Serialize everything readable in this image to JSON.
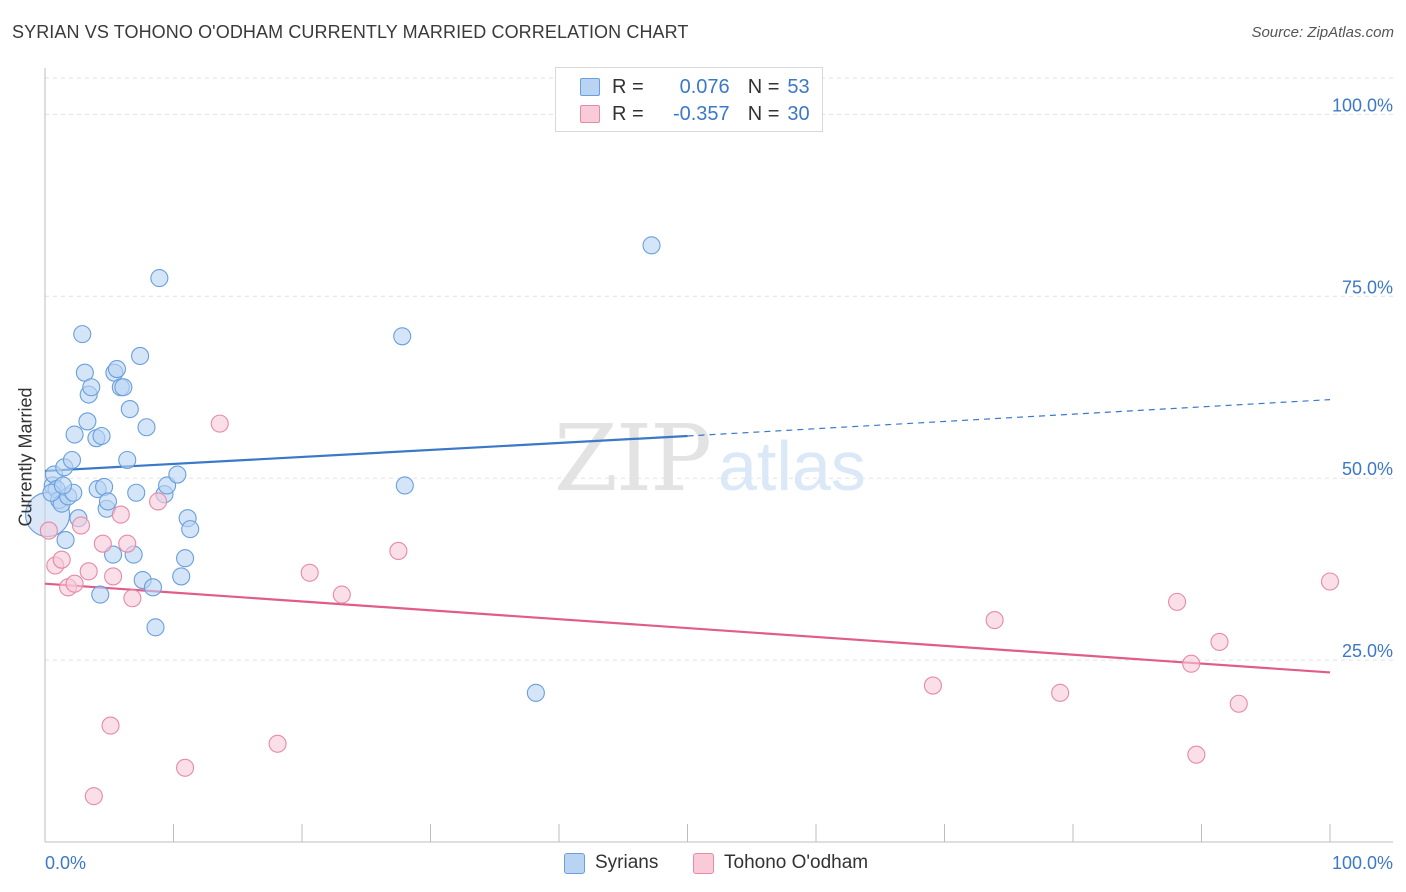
{
  "title": "SYRIAN VS TOHONO O'ODHAM CURRENTLY MARRIED CORRELATION CHART",
  "source": "Source: ZipAtlas.com",
  "watermark": {
    "zip": "ZIP",
    "atlas": "atlas"
  },
  "legend": {
    "rows": [
      {
        "r_label": "R =",
        "r_value": "0.076",
        "n_label": "N =",
        "n_value": "53",
        "fill": "#b9d3f3",
        "stroke": "#6a9fdc"
      },
      {
        "r_label": "R =",
        "r_value": "-0.357",
        "n_label": "N =",
        "n_value": "30",
        "fill": "#f9cad8",
        "stroke": "#e68aa6"
      }
    ]
  },
  "bottom_legend": [
    {
      "label": "Syrians",
      "fill": "#b9d3f3",
      "stroke": "#6a9fdc"
    },
    {
      "label": "Tohono O'odham",
      "fill": "#f9cad8",
      "stroke": "#e68aa6"
    }
  ],
  "chart_data": {
    "type": "scatter",
    "title": "SYRIAN VS TOHONO O'ODHAM CURRENTLY MARRIED CORRELATION CHART",
    "xlabel": "",
    "ylabel": "Currently Married",
    "xlim": [
      0,
      100
    ],
    "ylim": [
      0,
      105
    ],
    "x_tick_labels": [
      "0.0%",
      "100.0%"
    ],
    "y_ticks": [
      25,
      50,
      75,
      100
    ],
    "y_tick_labels": [
      "25.0%",
      "50.0%",
      "75.0%",
      "100.0%"
    ],
    "grid": true,
    "series": [
      {
        "name": "Syrians",
        "color": "#3a78c9",
        "fill": "#b9d3f3",
        "stroke": "#6a9fdc",
        "points": [
          [
            0.2,
            45.0
          ],
          [
            0.6,
            49.0
          ],
          [
            0.7,
            50.5
          ],
          [
            0.9,
            48.5
          ],
          [
            1.1,
            47.0
          ],
          [
            1.3,
            46.5
          ],
          [
            1.5,
            51.5
          ],
          [
            1.8,
            47.5
          ],
          [
            1.6,
            41.5
          ],
          [
            2.1,
            52.5
          ],
          [
            2.3,
            56.0
          ],
          [
            2.6,
            44.5
          ],
          [
            2.9,
            69.8
          ],
          [
            3.1,
            64.5
          ],
          [
            3.4,
            61.5
          ],
          [
            3.6,
            62.5
          ],
          [
            3.3,
            57.8
          ],
          [
            4.0,
            55.5
          ],
          [
            4.1,
            48.5
          ],
          [
            4.4,
            55.8
          ],
          [
            4.6,
            48.8
          ],
          [
            4.8,
            45.8
          ],
          [
            4.9,
            46.8
          ],
          [
            5.3,
            39.5
          ],
          [
            5.4,
            64.5
          ],
          [
            5.6,
            65.0
          ],
          [
            5.9,
            62.5
          ],
          [
            6.1,
            62.5
          ],
          [
            6.4,
            52.5
          ],
          [
            6.6,
            59.5
          ],
          [
            6.9,
            39.5
          ],
          [
            7.1,
            48.0
          ],
          [
            7.4,
            66.8
          ],
          [
            7.6,
            36.0
          ],
          [
            7.9,
            57.0
          ],
          [
            8.4,
            35.0
          ],
          [
            8.6,
            29.5
          ],
          [
            8.9,
            77.5
          ],
          [
            9.3,
            47.8
          ],
          [
            9.5,
            49.0
          ],
          [
            10.3,
            50.5
          ],
          [
            10.6,
            36.5
          ],
          [
            10.9,
            39.0
          ],
          [
            11.1,
            44.5
          ],
          [
            11.3,
            43.0
          ],
          [
            27.8,
            69.5
          ],
          [
            28.0,
            49.0
          ],
          [
            38.2,
            20.5
          ],
          [
            47.2,
            82.0
          ],
          [
            4.3,
            34.0
          ],
          [
            0.5,
            48.0
          ],
          [
            2.2,
            48.0
          ],
          [
            1.4,
            49.0
          ]
        ],
        "trend": {
          "x0": 0,
          "y0": 51.0,
          "x1": 50,
          "y1": 55.8,
          "x_end": 100,
          "y_end": 60.8
        }
      },
      {
        "name": "Tohono O'odham",
        "color": "#e05d8a",
        "fill": "#f9cad8",
        "stroke": "#e68aa6",
        "points": [
          [
            0.3,
            42.8
          ],
          [
            0.8,
            38.0
          ],
          [
            1.3,
            38.8
          ],
          [
            1.8,
            35.0
          ],
          [
            2.3,
            35.5
          ],
          [
            2.8,
            43.5
          ],
          [
            3.4,
            37.2
          ],
          [
            3.8,
            6.3
          ],
          [
            4.5,
            41.0
          ],
          [
            5.1,
            16.0
          ],
          [
            5.3,
            36.5
          ],
          [
            5.9,
            45.0
          ],
          [
            6.4,
            41.0
          ],
          [
            6.8,
            33.5
          ],
          [
            8.8,
            46.8
          ],
          [
            10.9,
            10.2
          ],
          [
            13.6,
            57.5
          ],
          [
            18.1,
            13.5
          ],
          [
            20.6,
            37.0
          ],
          [
            23.1,
            34.0
          ],
          [
            27.5,
            40.0
          ],
          [
            69.1,
            21.5
          ],
          [
            73.9,
            30.5
          ],
          [
            79.0,
            20.5
          ],
          [
            88.1,
            33.0
          ],
          [
            89.2,
            24.5
          ],
          [
            91.4,
            27.5
          ],
          [
            92.9,
            19.0
          ],
          [
            89.6,
            12.0
          ],
          [
            100.0,
            35.8
          ]
        ],
        "trend": {
          "x0": 0,
          "y0": 35.5,
          "x1": 100,
          "y1": 23.3
        }
      }
    ]
  }
}
